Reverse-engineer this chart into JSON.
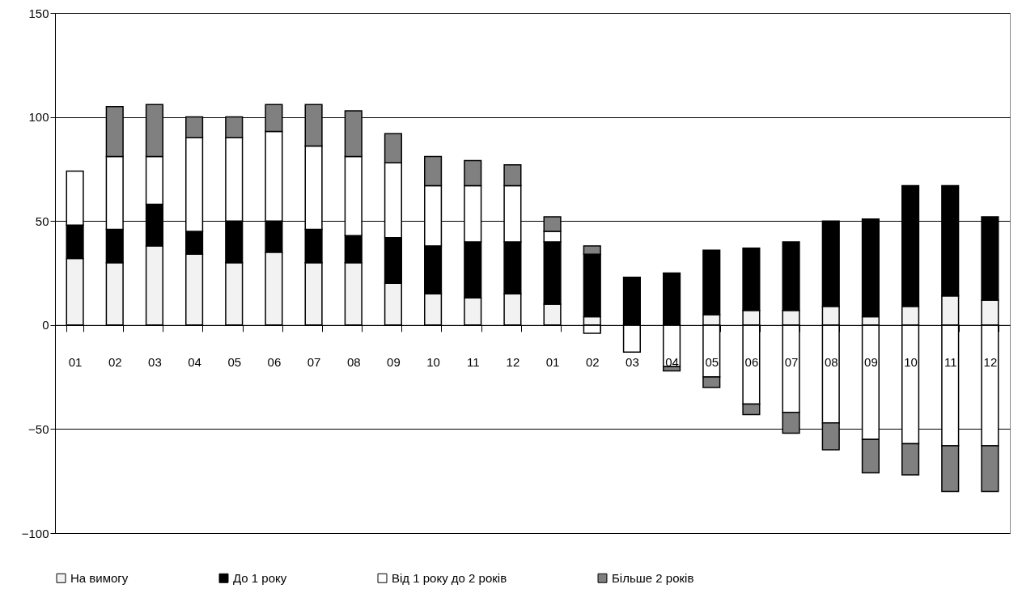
{
  "chart_data": {
    "type": "bar",
    "stacked": true,
    "categories": [
      "01",
      "02",
      "03",
      "04",
      "05",
      "06",
      "07",
      "08",
      "09",
      "10",
      "11",
      "12",
      "01",
      "02",
      "03",
      "04",
      "05",
      "06",
      "07",
      "08",
      "09",
      "10",
      "11",
      "12"
    ],
    "series": [
      {
        "name": "На вимогу",
        "color": "#f2f2f2",
        "values": [
          32,
          30,
          38,
          34,
          30,
          35,
          30,
          30,
          20,
          15,
          13,
          15,
          10,
          4,
          null,
          null,
          5,
          7,
          7,
          9,
          4,
          9,
          14,
          12
        ]
      },
      {
        "name": "До 1 року",
        "color": "#000000",
        "values": [
          16,
          16,
          20,
          11,
          20,
          15,
          16,
          13,
          22,
          23,
          27,
          25,
          30,
          30,
          23,
          25,
          31,
          30,
          33,
          41,
          47,
          58,
          53,
          40
        ]
      },
      {
        "name": "Від 1 року до 2 років",
        "color": "#ffffff",
        "values": [
          26,
          35,
          23,
          45,
          40,
          43,
          40,
          38,
          36,
          29,
          27,
          27,
          5,
          -4,
          -13,
          -20,
          -25,
          -38,
          -42,
          -47,
          -55,
          -57,
          -58,
          -58
        ]
      },
      {
        "name": "Більше 2 років",
        "color": "#808080",
        "values": [
          null,
          24,
          25,
          10,
          10,
          13,
          20,
          22,
          14,
          14,
          12,
          10,
          7,
          4,
          null,
          -2,
          -5,
          -5,
          -10,
          -13,
          -16,
          -15,
          -22,
          -22
        ]
      }
    ],
    "ylim": [
      -100,
      150
    ],
    "yticks": [
      -100,
      -50,
      0,
      50,
      100,
      150
    ],
    "grid": "y",
    "legend": "bottom"
  }
}
